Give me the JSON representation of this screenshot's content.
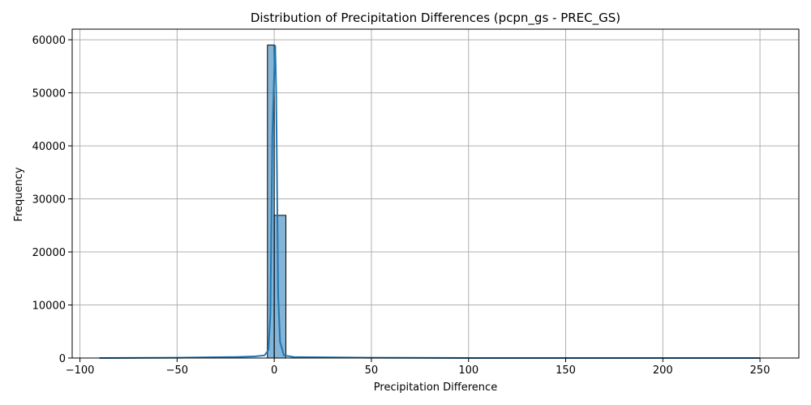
{
  "chart_data": {
    "type": "bar",
    "title": "Distribution of Precipitation Differences (pcpn_gs - PREC_GS)",
    "xlabel": "Precipitation Difference",
    "ylabel": "Frequency",
    "xlim": [
      -104,
      270
    ],
    "ylim": [
      0,
      62000
    ],
    "grid": true,
    "xticks": [
      -100,
      -50,
      0,
      50,
      100,
      150,
      200,
      250
    ],
    "xtick_labels": [
      "−100",
      "−50",
      "0",
      "50",
      "100",
      "150",
      "200",
      "250"
    ],
    "yticks": [
      0,
      10000,
      20000,
      30000,
      40000,
      50000,
      60000
    ],
    "ytick_labels": [
      "0",
      "10000",
      "20000",
      "30000",
      "40000",
      "50000",
      "60000"
    ],
    "bins": [
      {
        "x0": -3.5,
        "x1": 0.0,
        "count": 59000
      },
      {
        "x0": 0.0,
        "x1": 6.0,
        "count": 26900
      }
    ],
    "kde": {
      "x": [
        -90,
        -50,
        -20,
        -10,
        -5,
        -3,
        -2,
        -1,
        0,
        0.5,
        1,
        2,
        3,
        5,
        10,
        20,
        50,
        100,
        150,
        200,
        250
      ],
      "y": [
        0,
        50,
        200,
        300,
        500,
        1500,
        8000,
        42000,
        54000,
        59000,
        50000,
        12000,
        3000,
        500,
        200,
        150,
        50,
        0,
        0,
        0,
        0
      ]
    }
  }
}
